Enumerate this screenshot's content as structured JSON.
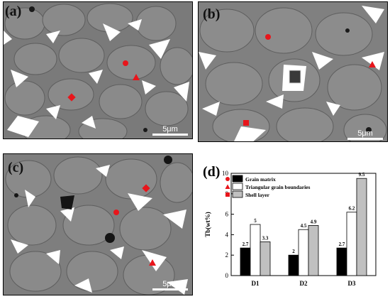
{
  "panels": {
    "a": {
      "label": "(a)",
      "scale": "5μm"
    },
    "b": {
      "label": "(b)",
      "scale": "5μm"
    },
    "c": {
      "label": "(c)",
      "scale": "5μm"
    },
    "d": {
      "label": "(d)"
    }
  },
  "markers": {
    "circle_color": "#e8151b",
    "triangle_color": "#e8151b",
    "square_color": "#e8151b"
  },
  "chart_data": {
    "type": "bar",
    "categories": [
      "D1",
      "D2",
      "D3"
    ],
    "ylabel": "Tb(wt%)",
    "ylim": [
      0,
      10
    ],
    "yticks": [
      0,
      2,
      4,
      6,
      8,
      10
    ],
    "legend_position": "top-left",
    "series": [
      {
        "name": "Grain matrix",
        "values": [
          2.7,
          2,
          2.7
        ],
        "labels": [
          "2.7",
          "2",
          "2.7"
        ],
        "color": "#000000",
        "marker": "circle"
      },
      {
        "name": "Triangular grain boundaries",
        "values": [
          5,
          4.5,
          6.2
        ],
        "labels": [
          "5",
          "4.5",
          "6.2"
        ],
        "color": "#ffffff",
        "marker": "triangle"
      },
      {
        "name": "Shell layer",
        "values": [
          3.3,
          4.9,
          9.5
        ],
        "labels": [
          "3.3",
          "4.9",
          "9.5"
        ],
        "color": "#c0c0c0",
        "marker": "square"
      }
    ]
  }
}
